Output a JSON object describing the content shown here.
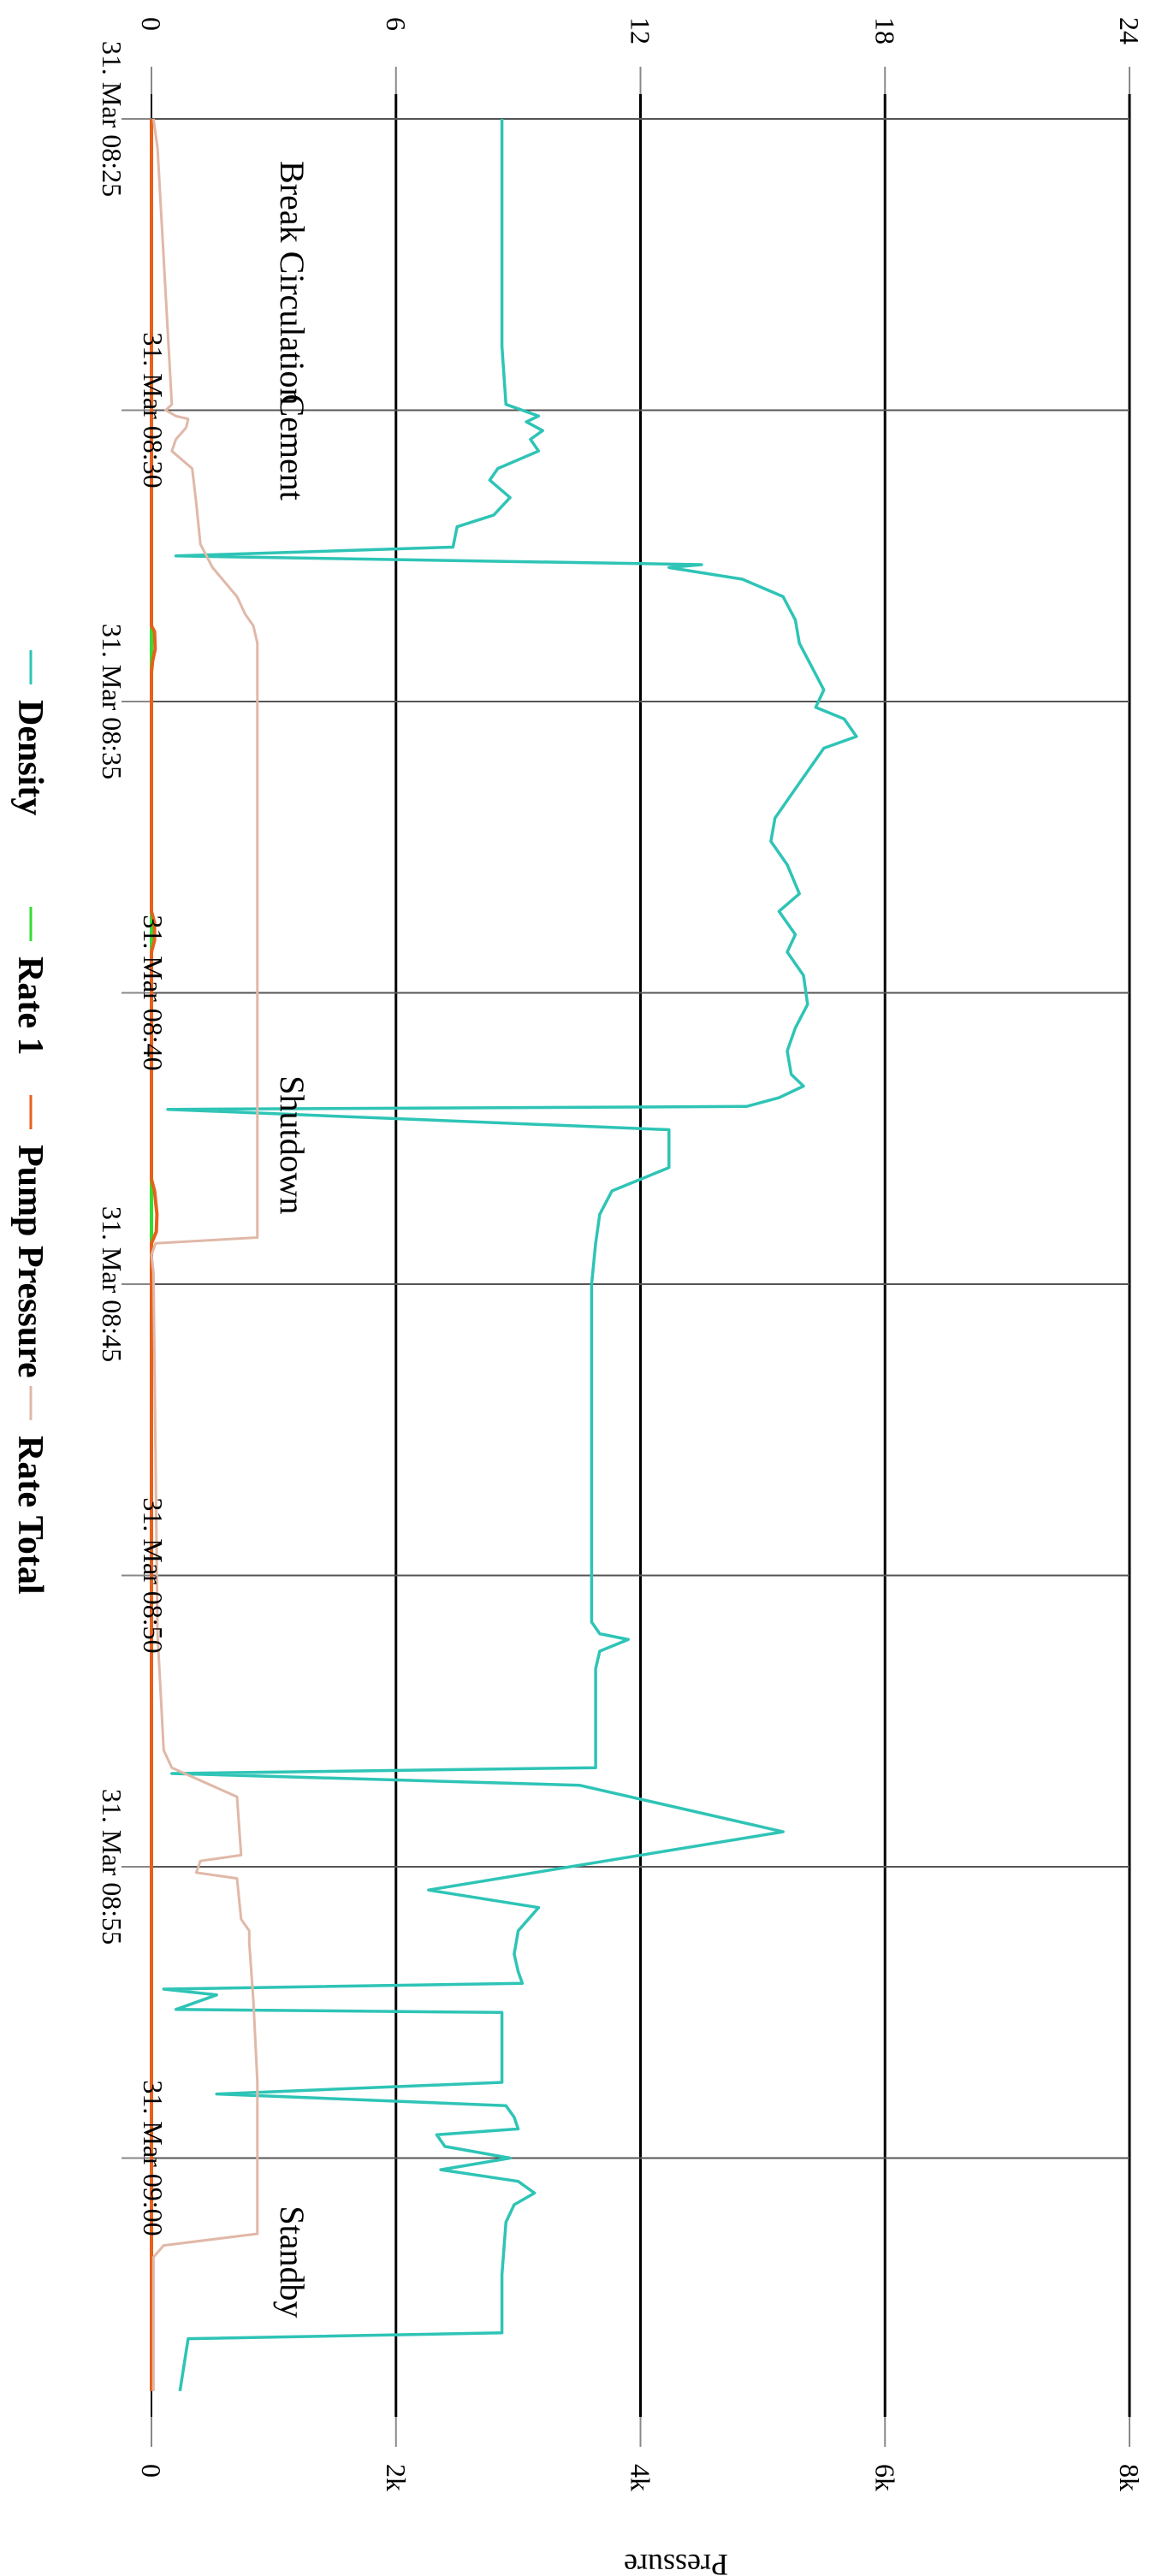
{
  "chart_data": {
    "type": "line",
    "orientation": "rotated 90 degrees clockwise (time runs top to bottom)",
    "grid": true,
    "legend_position": "left",
    "x_axis": {
      "type": "time",
      "ticks": [
        "31. Mar 08:25",
        "31. Mar 08:30",
        "31. Mar 08:35",
        "31. Mar 08:40",
        "31. Mar 08:45",
        "31. Mar 08:50",
        "31. Mar 08:55",
        "31. Mar 09:00"
      ],
      "range": [
        "31. Mar 08:24:30",
        "31. Mar 09:04:20"
      ]
    },
    "y_axis_secondary": {
      "ticks": [
        "0",
        "6",
        "12",
        "18",
        "24"
      ],
      "range": [
        0,
        24
      ]
    },
    "y_axis_primary": {
      "title": "Pressure",
      "ticks": [
        "0",
        "2k",
        "4k",
        "6k",
        "8k"
      ],
      "range": [
        0,
        8000
      ]
    },
    "phase_annotations": [
      {
        "label": "Break Circulation",
        "time_min": 2.6
      },
      {
        "label": "Cement",
        "time_min": 6.6
      },
      {
        "label": "Shutdown",
        "time_min": 18.3
      },
      {
        "label": "Standby",
        "time_min": 37.7
      }
    ],
    "series": [
      {
        "name": "Density",
        "color": "#2ec4b6",
        "axis": "secondary",
        "points": [
          [
            0,
            8.6
          ],
          [
            3.9,
            8.6
          ],
          [
            4.9,
            8.7
          ],
          [
            5.0,
            9.1
          ],
          [
            5.1,
            9.5
          ],
          [
            5.2,
            9.2
          ],
          [
            5.35,
            9.6
          ],
          [
            5.5,
            9.3
          ],
          [
            5.7,
            9.5
          ],
          [
            6.0,
            8.5
          ],
          [
            6.2,
            8.3
          ],
          [
            6.5,
            8.8
          ],
          [
            6.8,
            8.4
          ],
          [
            7.0,
            7.5
          ],
          [
            7.35,
            7.4
          ],
          [
            7.5,
            0.6
          ],
          [
            7.65,
            13.5
          ],
          [
            7.7,
            12.7
          ],
          [
            7.9,
            14.5
          ],
          [
            8.2,
            15.5
          ],
          [
            8.6,
            15.8
          ],
          [
            9.0,
            15.9
          ],
          [
            9.4,
            16.2
          ],
          [
            9.8,
            16.5
          ],
          [
            10.1,
            16.3
          ],
          [
            10.3,
            17.0
          ],
          [
            10.6,
            17.3
          ],
          [
            10.8,
            16.5
          ],
          [
            11.0,
            16.3
          ],
          [
            11.4,
            15.9
          ],
          [
            12.0,
            15.3
          ],
          [
            12.4,
            15.2
          ],
          [
            12.8,
            15.6
          ],
          [
            13.3,
            15.9
          ],
          [
            13.6,
            15.4
          ],
          [
            14.0,
            15.8
          ],
          [
            14.3,
            15.6
          ],
          [
            14.7,
            16.0
          ],
          [
            15.2,
            16.1
          ],
          [
            15.6,
            15.8
          ],
          [
            16.0,
            15.6
          ],
          [
            16.4,
            15.7
          ],
          [
            16.6,
            16.0
          ],
          [
            16.8,
            15.4
          ],
          [
            16.95,
            14.6
          ],
          [
            17.0,
            0.4
          ],
          [
            17.35,
            12.7
          ],
          [
            17.5,
            12.7
          ],
          [
            18.0,
            12.7
          ],
          [
            18.4,
            11.3
          ],
          [
            18.8,
            11.0
          ],
          [
            19.3,
            10.9
          ],
          [
            20.0,
            10.8
          ],
          [
            21.0,
            10.8
          ],
          [
            25.0,
            10.8
          ],
          [
            25.8,
            10.8
          ],
          [
            26.0,
            11.0
          ],
          [
            26.1,
            11.7
          ],
          [
            26.3,
            11.0
          ],
          [
            26.6,
            10.9
          ],
          [
            28.0,
            10.9
          ],
          [
            28.3,
            10.9
          ],
          [
            28.4,
            0.5
          ],
          [
            28.6,
            10.5
          ],
          [
            29.4,
            15.5
          ],
          [
            30.4,
            6.8
          ],
          [
            30.7,
            9.5
          ],
          [
            31.1,
            9.0
          ],
          [
            31.5,
            8.9
          ],
          [
            31.8,
            9.0
          ],
          [
            32.0,
            9.1
          ],
          [
            32.1,
            0.3
          ],
          [
            32.2,
            1.6
          ],
          [
            32.45,
            0.6
          ],
          [
            32.5,
            8.6
          ],
          [
            33.7,
            8.6
          ],
          [
            33.9,
            1.6
          ],
          [
            34.1,
            8.7
          ],
          [
            34.3,
            8.9
          ],
          [
            34.5,
            9.0
          ],
          [
            34.6,
            7.0
          ],
          [
            34.8,
            7.2
          ],
          [
            35.0,
            8.8
          ],
          [
            35.2,
            7.1
          ],
          [
            35.4,
            9.0
          ],
          [
            35.6,
            9.4
          ],
          [
            35.8,
            8.9
          ],
          [
            36.1,
            8.7
          ],
          [
            37.0,
            8.6
          ],
          [
            38.0,
            8.6
          ],
          [
            38.1,
            0.9
          ],
          [
            39.0,
            0.7
          ]
        ]
      },
      {
        "name": "Rate 1",
        "color": "#33dd33",
        "axis": "primary",
        "points": [
          [
            0,
            0
          ],
          [
            39.0,
            0
          ]
        ]
      },
      {
        "name": "Pump Pressure",
        "color": "#e8601c",
        "axis": "primary",
        "points": [
          [
            0,
            0
          ],
          [
            8.7,
            0
          ],
          [
            8.8,
            25
          ],
          [
            9.1,
            30
          ],
          [
            9.3,
            10
          ],
          [
            9.5,
            0
          ],
          [
            13.6,
            0
          ],
          [
            13.8,
            25
          ],
          [
            14.1,
            25
          ],
          [
            14.3,
            0
          ],
          [
            18.2,
            0
          ],
          [
            18.4,
            25
          ],
          [
            18.8,
            45
          ],
          [
            19.1,
            40
          ],
          [
            19.3,
            0
          ],
          [
            39.0,
            0
          ]
        ]
      },
      {
        "name": "Rate Total",
        "color": "#e0b8a8",
        "axis": "secondary",
        "points": [
          [
            0,
            0.05
          ],
          [
            0.5,
            0.15
          ],
          [
            4.9,
            0.5
          ],
          [
            5.0,
            0.35
          ],
          [
            5.1,
            0.6
          ],
          [
            5.15,
            0.9
          ],
          [
            5.3,
            0.85
          ],
          [
            5.5,
            0.6
          ],
          [
            5.7,
            0.5
          ],
          [
            6.0,
            1.0
          ],
          [
            6.6,
            1.1
          ],
          [
            7.3,
            1.2
          ],
          [
            7.7,
            1.5
          ],
          [
            8.2,
            2.1
          ],
          [
            8.5,
            2.3
          ],
          [
            8.7,
            2.5
          ],
          [
            9.0,
            2.6
          ],
          [
            15.0,
            2.6
          ],
          [
            17.8,
            2.6
          ],
          [
            18.8,
            2.6
          ],
          [
            19.2,
            2.6
          ],
          [
            19.3,
            0.1
          ],
          [
            19.5,
            0.0
          ],
          [
            19.8,
            0.05
          ],
          [
            26.0,
            0.15
          ],
          [
            28.0,
            0.3
          ],
          [
            28.3,
            0.5
          ],
          [
            28.8,
            2.1
          ],
          [
            29.8,
            2.2
          ],
          [
            29.9,
            1.2
          ],
          [
            30.1,
            1.1
          ],
          [
            30.2,
            2.1
          ],
          [
            30.9,
            2.2
          ],
          [
            31.1,
            2.4
          ],
          [
            31.3,
            2.4
          ],
          [
            32.3,
            2.5
          ],
          [
            33.7,
            2.6
          ],
          [
            35.0,
            2.6
          ],
          [
            36.3,
            2.6
          ],
          [
            36.5,
            0.3
          ],
          [
            36.7,
            0.05
          ],
          [
            39.0,
            0.05
          ]
        ]
      }
    ]
  }
}
